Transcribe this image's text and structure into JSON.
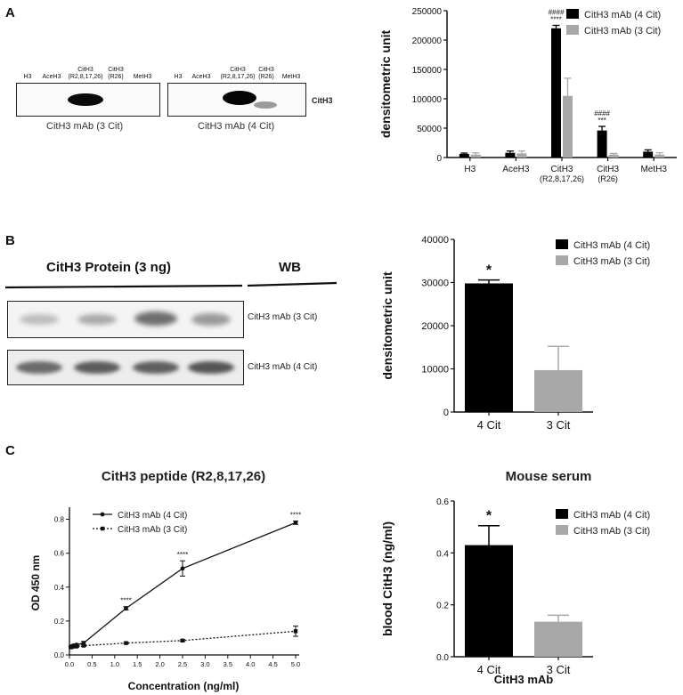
{
  "panels": {
    "a": "A",
    "b": "B",
    "c": "C"
  },
  "colors": {
    "series_4cit": "#000000",
    "series_3cit": "#a8a8a8"
  },
  "panel_a": {
    "blot_lanes": [
      "H3",
      "AceH3",
      "CitH3 (R2,8,17,26)",
      "CitH3 (R26)",
      "MetH3"
    ],
    "blot_lanes_lines": [
      [
        "H3"
      ],
      [
        "AceH3"
      ],
      [
        "CitH3",
        "(R2,8,17,26)"
      ],
      [
        "CitH3",
        "(R26)"
      ],
      [
        "MetH3"
      ]
    ],
    "blot_side_label": "CitH3",
    "blot_captions": [
      "CitH3 mAb (3 Cit)",
      "CitH3 mAb (4 Cit)"
    ]
  },
  "panel_b": {
    "header_left": "CitH3 Protein (3 ng)",
    "header_right": "WB",
    "blot_labels": [
      "CitH3 mAb (3 Cit)",
      "CitH3 mAb (4 Cit)"
    ]
  },
  "chart_data": [
    {
      "type": "bar",
      "panel": "A",
      "ylabel": "densitometric unit",
      "ylim": [
        0,
        250000
      ],
      "yticks": [
        "0",
        "50000",
        "100000",
        "150000",
        "200000",
        "250000"
      ],
      "categories": [
        "H3",
        "AceH3",
        "CitH3 (R2,8,17,26)",
        "CitH3 (R26)",
        "MetH3"
      ],
      "category_lines": [
        [
          "H3"
        ],
        [
          "AceH3"
        ],
        [
          "CitH3",
          "(R2,8,17,26)"
        ],
        [
          "CitH3",
          "(R26)"
        ],
        [
          "MetH3"
        ]
      ],
      "series": [
        {
          "name": "CitH3 mAb (4 Cit)",
          "values": [
            6000,
            8000,
            220000,
            46000,
            10000
          ],
          "errors": [
            1500,
            3000,
            5000,
            7000,
            3000
          ]
        },
        {
          "name": "CitH3 mAb (3 Cit)",
          "values": [
            5000,
            7000,
            105000,
            5000,
            5000
          ],
          "errors": [
            3000,
            4000,
            30000,
            2000,
            3000
          ]
        }
      ],
      "annotations": [
        {
          "category": 2,
          "lines": [
            "####",
            "****"
          ]
        },
        {
          "category": 3,
          "lines": [
            "####",
            "***"
          ]
        }
      ],
      "legend": "top-right"
    },
    {
      "type": "bar",
      "panel": "B",
      "ylabel": "densitometric unit",
      "ylim": [
        0,
        40000
      ],
      "yticks": [
        "0",
        "10000",
        "20000",
        "30000",
        "40000"
      ],
      "categories": [
        "4 Cit",
        "3 Cit"
      ],
      "values": [
        29800,
        9700
      ],
      "errors": [
        800,
        5500
      ],
      "annotations": [
        "*",
        ""
      ],
      "legend_entries": [
        "CitH3 mAb (4 Cit)",
        "CitH3 mAb (3 Cit)"
      ],
      "legend": "top-right"
    },
    {
      "type": "line",
      "panel": "C",
      "title": "CitH3 peptide (R2,8,17,26)",
      "xlabel": "Concentration (ng/ml)",
      "ylabel": "OD 450 nm",
      "xlim": [
        0,
        5
      ],
      "ylim": [
        0,
        0.85
      ],
      "xticks": [
        "0.0",
        "0.5",
        "1.0",
        "1.5",
        "2.0",
        "2.5",
        "3.0",
        "3.5",
        "4.0",
        "4.5",
        "5.0"
      ],
      "yticks": [
        "0.0",
        "0.2",
        "0.4",
        "0.6",
        "0.8"
      ],
      "series": [
        {
          "name": "CitH3 mAb (4 Cit)",
          "style": "solid",
          "x": [
            0.039,
            0.078,
            0.156,
            0.313,
            1.25,
            2.5,
            5.0
          ],
          "y": [
            0.05,
            0.055,
            0.06,
            0.07,
            0.275,
            0.51,
            0.78
          ],
          "errors": [
            0.005,
            0.005,
            0.005,
            0.01,
            0.01,
            0.045,
            0.01
          ]
        },
        {
          "name": "CitH3 mAb (3 Cit)",
          "style": "dotted",
          "x": [
            0.039,
            0.078,
            0.156,
            0.313,
            1.25,
            2.5,
            5.0
          ],
          "y": [
            0.045,
            0.05,
            0.05,
            0.055,
            0.07,
            0.085,
            0.14
          ],
          "errors": [
            0.005,
            0.005,
            0.005,
            0.005,
            0.005,
            0.005,
            0.03
          ]
        }
      ],
      "annotations": [
        {
          "x": 1.25,
          "text": "****"
        },
        {
          "x": 2.5,
          "text": "****"
        },
        {
          "x": 5.0,
          "text": "****"
        }
      ],
      "legend": "top-left"
    },
    {
      "type": "bar",
      "panel": "C",
      "title": "Mouse serum",
      "xlabel": "CitH3 mAb",
      "ylabel": "blood CitH3 (ng/ml)",
      "ylim": [
        0,
        0.6
      ],
      "yticks": [
        "0.0",
        "0.2",
        "0.4",
        "0.6"
      ],
      "categories": [
        "4 Cit",
        "3 Cit"
      ],
      "values": [
        0.43,
        0.135
      ],
      "errors": [
        0.075,
        0.025
      ],
      "annotations": [
        "*",
        ""
      ],
      "legend_entries": [
        "CitH3 mAb (4 Cit)",
        "CitH3 mAb (3 Cit)"
      ],
      "legend": "top-right"
    }
  ]
}
